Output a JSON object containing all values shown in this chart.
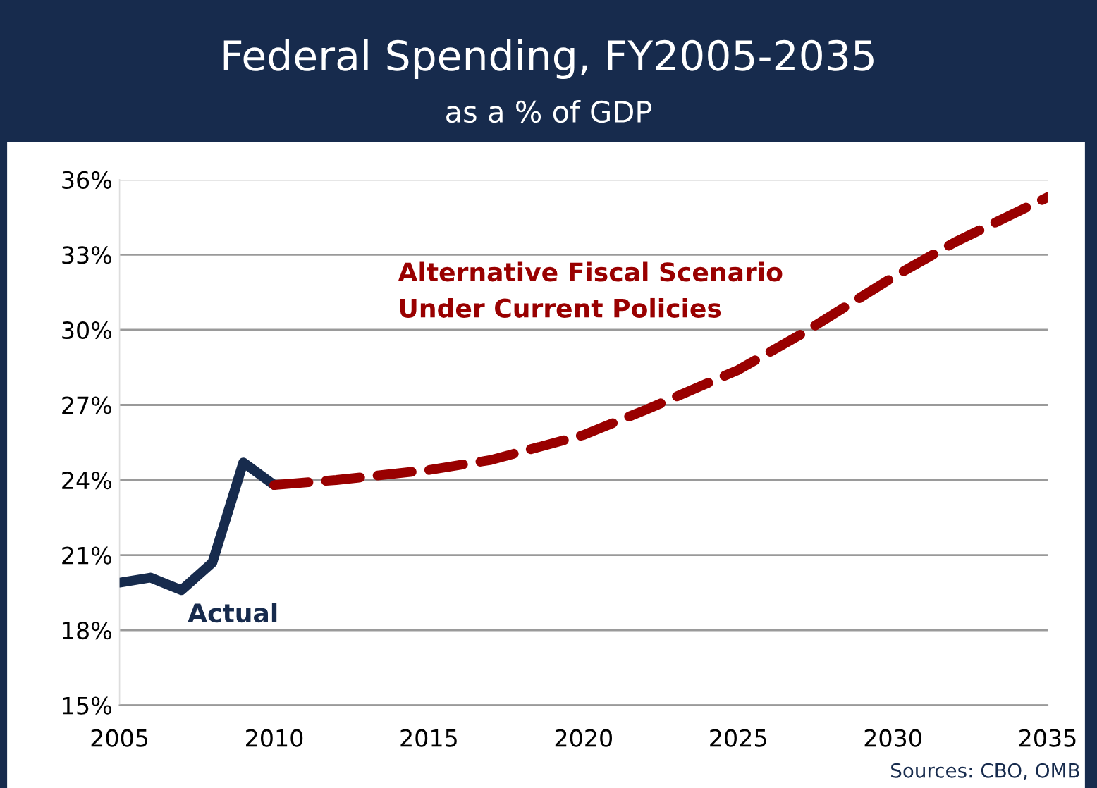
{
  "chart_data": {
    "type": "line",
    "title": "Federal Spending, FY2005-2035",
    "subtitle": "as a % of GDP",
    "series": [
      {
        "name": "Actual",
        "color": "#172b4d",
        "line_style": "solid",
        "x": [
          2005,
          2006,
          2007,
          2008,
          2009,
          2010
        ],
        "values": [
          19.9,
          20.1,
          19.6,
          20.7,
          24.7,
          23.8
        ]
      },
      {
        "name": "Alternative Fiscal Scenario\nUnder Current Policies",
        "color": "#990000",
        "line_style": "dashed",
        "x": [
          2010,
          2012,
          2015,
          2017,
          2020,
          2022,
          2025,
          2027,
          2030,
          2032,
          2035
        ],
        "values": [
          23.8,
          24.0,
          24.4,
          24.8,
          25.8,
          26.8,
          28.4,
          29.8,
          32.1,
          33.5,
          35.3
        ]
      }
    ],
    "xlim": [
      2005,
      2035
    ],
    "xticks": [
      2005,
      2010,
      2015,
      2020,
      2025,
      2030,
      2035
    ],
    "ylim": [
      15,
      36
    ],
    "yticks": [
      {
        "value": 15,
        "label": "15%"
      },
      {
        "value": 18,
        "label": "18%"
      },
      {
        "value": 21,
        "label": "21%"
      },
      {
        "value": 24,
        "label": "24%"
      },
      {
        "value": 27,
        "label": "27%"
      },
      {
        "value": 30,
        "label": "30%"
      },
      {
        "value": 33,
        "label": "33%"
      },
      {
        "value": 36,
        "label": "36%"
      }
    ],
    "grid": "y",
    "legend": false,
    "marker": "none",
    "annotations": [
      "Sources: CBO, OMB"
    ]
  }
}
